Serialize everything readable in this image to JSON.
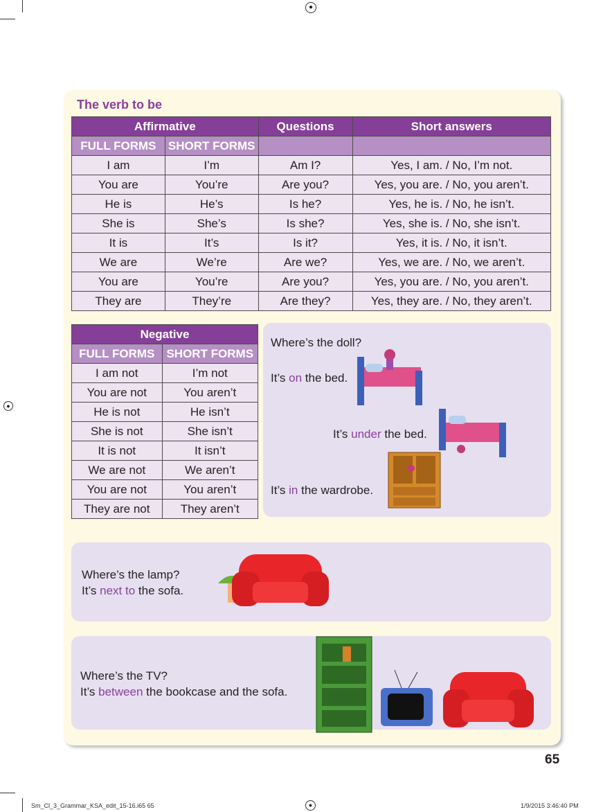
{
  "title": "The verb to be",
  "affirmative": {
    "headers": [
      "Affirmative",
      "Questions",
      "Short answers"
    ],
    "subheaders": [
      "FULL FORMS",
      "SHORT FORMS"
    ],
    "rows": [
      [
        "I am",
        "I’m",
        "Am I?",
        "Yes, I am. / No, I’m not."
      ],
      [
        "You are",
        "You’re",
        "Are you?",
        "Yes, you are. / No, you aren’t."
      ],
      [
        "He is",
        "He’s",
        "Is he?",
        "Yes, he is. / No, he isn’t."
      ],
      [
        "She is",
        "She’s",
        "Is she?",
        "Yes, she is. / No, she isn’t."
      ],
      [
        "It is",
        "It’s",
        "Is it?",
        "Yes, it is. / No, it isn’t."
      ],
      [
        "We are",
        "We’re",
        "Are we?",
        "Yes, we are. / No, we aren’t."
      ],
      [
        "You are",
        "You’re",
        "Are you?",
        "Yes, you are. / No, you aren’t."
      ],
      [
        "They are",
        "They’re",
        "Are they?",
        "Yes, they are. / No, they aren’t."
      ]
    ]
  },
  "negative": {
    "header": "Negative",
    "subheaders": [
      "FULL FORMS",
      "SHORT FORMS"
    ],
    "rows": [
      [
        "I am not",
        "I’m not"
      ],
      [
        "You are not",
        "You aren’t"
      ],
      [
        "He is not",
        "He isn’t"
      ],
      [
        "She is not",
        "She isn’t"
      ],
      [
        "It is not",
        "It isn’t"
      ],
      [
        "We are not",
        "We aren’t"
      ],
      [
        "You are not",
        "You aren’t"
      ],
      [
        "They are not",
        "They aren’t"
      ]
    ]
  },
  "doll": {
    "question": "Where’s the doll?",
    "on": {
      "pre": "It’s ",
      "prep": "on",
      "post": " the bed."
    },
    "under": {
      "pre": "It’s ",
      "prep": "under",
      "post": " the bed."
    },
    "in": {
      "pre": "It’s ",
      "prep": "in",
      "post": " the wardrobe."
    }
  },
  "lamp": {
    "question": "Where’s the lamp?",
    "pre": "It’s ",
    "prep": "next to",
    "post": " the sofa."
  },
  "tv": {
    "question": "Where’s the TV?",
    "pre": "It’s ",
    "prep": "between",
    "post": " the bookcase and the sofa."
  },
  "page_number": "65",
  "footer": {
    "file": "Sm_Cl_3_Grammar_KSA_edit_15-16.i65   65",
    "timestamp": "1/9/2015   3:46:40 PM"
  },
  "colors": {
    "header": "#853f98",
    "subheader": "#b68fc5",
    "row": "#ede3f1",
    "panel": "#fdf9e3",
    "box": "#e6dff0",
    "highlight": "#8a3f9b"
  }
}
